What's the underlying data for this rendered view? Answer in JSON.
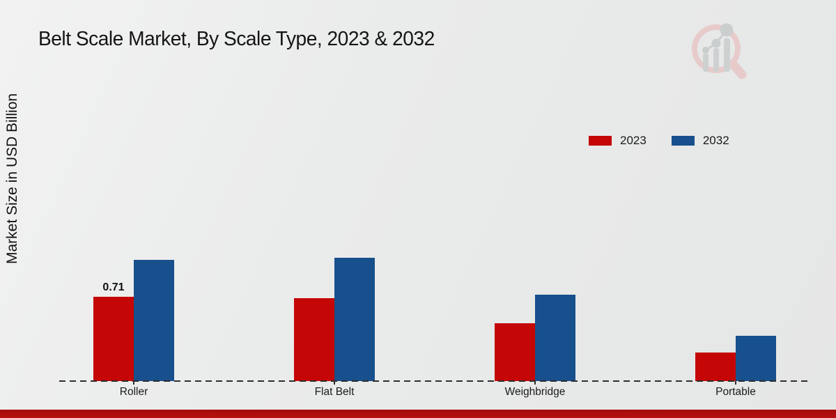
{
  "title": "Belt Scale Market, By Scale Type, 2023 & 2032",
  "ylabel": "Market Size in USD Billion",
  "legend": {
    "items": [
      {
        "label": "2023",
        "color": "#c50606"
      },
      {
        "label": "2032",
        "color": "#17508c"
      }
    ]
  },
  "colors": {
    "series_2023": "#c50606",
    "series_2032": "#17508c",
    "bottom_band": "#b01010",
    "background": "#e9eaea",
    "axis_dash": "#2e2e2e"
  },
  "watermark_icon": "market-research-magnifier-logo",
  "chart_data": {
    "type": "bar",
    "title": "Belt Scale Market, By Scale Type, 2023 & 2032",
    "ylabel": "Market Size in USD Billion",
    "xlabel": "",
    "categories": [
      "Roller",
      "Flat Belt",
      "Weighbridge",
      "Portable"
    ],
    "series": [
      {
        "name": "2023",
        "color": "#c50606",
        "values": [
          0.71,
          0.7,
          0.49,
          0.24
        ]
      },
      {
        "name": "2032",
        "color": "#17508c",
        "values": [
          1.02,
          1.04,
          0.73,
          0.38
        ]
      }
    ],
    "value_labels": [
      {
        "series_index": 0,
        "category_index": 0,
        "text": "0.71"
      }
    ],
    "ylim": [
      0,
      1.15
    ],
    "grid": false,
    "legend_position": "upper-right",
    "baseline_style": "dashed"
  }
}
